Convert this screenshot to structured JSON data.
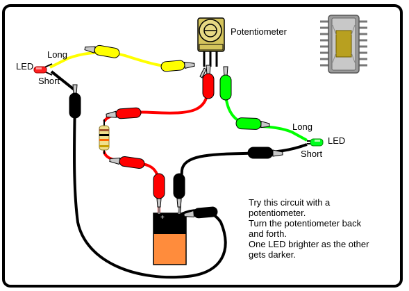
{
  "labels": {
    "potentiometer": "Potentiometer",
    "left_led": "LED",
    "left_long": "Long",
    "left_short": "Short",
    "right_led": "LED",
    "right_long": "Long",
    "right_short": "Short"
  },
  "note_lines": [
    "Try this circuit with a",
    "potentiometer.",
    "Turn the potentiometer back",
    "and forth.",
    "One LED brighter as the other",
    "gets darker."
  ],
  "colors": {
    "frame": "#000000",
    "wire_yellow": "#ffff00",
    "wire_red": "#ff0000",
    "wire_green": "#00ff00",
    "wire_black": "#000000",
    "battery": "#ff8c3c",
    "pot_body": "#d4c45c",
    "chip_body": "#9a9a9a"
  }
}
